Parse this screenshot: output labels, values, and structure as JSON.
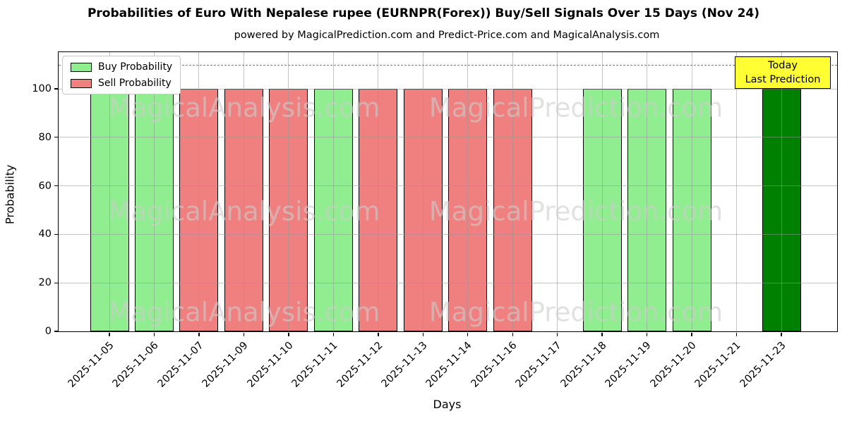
{
  "chart": {
    "title": "Probabilities of Euro With Nepalese rupee (EURNPR(Forex)) Buy/Sell Signals Over 15 Days (Nov 24)",
    "subtitle": "powered by MagicalPrediction.com and Predict-Price.com and MagicalAnalysis.com",
    "xlabel": "Days",
    "ylabel": "Probability",
    "legend": [
      {
        "label": "Buy Probability",
        "color": "#90ee90"
      },
      {
        "label": "Sell Probability",
        "color": "#f08080"
      }
    ],
    "annotation": {
      "line1": "Today",
      "line2": "Last Prediction",
      "bg": "#ffff33"
    },
    "watermarks": {
      "left": "MagicalAnalysis.com",
      "right": "MagicalPrediction.com"
    },
    "colors": {
      "buy": "#90ee90",
      "sell": "#f08080",
      "today_buy": "#008000",
      "grid": "#969696",
      "dashed_line": "#7a7a7a",
      "annotation_bg": "#ffff33"
    }
  },
  "chart_data": {
    "type": "bar",
    "title": "Probabilities of Euro With Nepalese rupee (EURNPR(Forex)) Buy/Sell Signals Over 15 Days (Nov 24)",
    "xlabel": "Days",
    "ylabel": "Probability",
    "ylim": [
      0,
      115
    ],
    "yticks": [
      0,
      20,
      40,
      60,
      80,
      100
    ],
    "threshold_line_y": 110,
    "grid": true,
    "legend_position": "upper left",
    "categories": [
      "2025-11-05",
      "2025-11-06",
      "2025-11-07",
      "2025-11-09",
      "2025-11-10",
      "2025-11-11",
      "2025-11-12",
      "2025-11-13",
      "2025-11-14",
      "2025-11-16",
      "2025-11-17",
      "2025-11-18",
      "2025-11-19",
      "2025-11-20",
      "2025-11-21",
      "2025-11-23"
    ],
    "bars": [
      {
        "date": "2025-11-05",
        "signal": "buy",
        "value": 100
      },
      {
        "date": "2025-11-06",
        "signal": "buy",
        "value": 100
      },
      {
        "date": "2025-11-07",
        "signal": "sell",
        "value": 100
      },
      {
        "date": "2025-11-09",
        "signal": "sell",
        "value": 100
      },
      {
        "date": "2025-11-10",
        "signal": "sell",
        "value": 100
      },
      {
        "date": "2025-11-11",
        "signal": "buy",
        "value": 100
      },
      {
        "date": "2025-11-12",
        "signal": "sell",
        "value": 100
      },
      {
        "date": "2025-11-13",
        "signal": "sell",
        "value": 100
      },
      {
        "date": "2025-11-14",
        "signal": "sell",
        "value": 100
      },
      {
        "date": "2025-11-16",
        "signal": "sell",
        "value": 100
      },
      {
        "date": "2025-11-17",
        "signal": "none",
        "value": 0
      },
      {
        "date": "2025-11-18",
        "signal": "buy",
        "value": 100
      },
      {
        "date": "2025-11-19",
        "signal": "buy",
        "value": 100
      },
      {
        "date": "2025-11-20",
        "signal": "buy",
        "value": 100
      },
      {
        "date": "2025-11-21",
        "signal": "none",
        "value": 0
      },
      {
        "date": "2025-11-23",
        "signal": "today_buy",
        "value": 100
      }
    ]
  }
}
